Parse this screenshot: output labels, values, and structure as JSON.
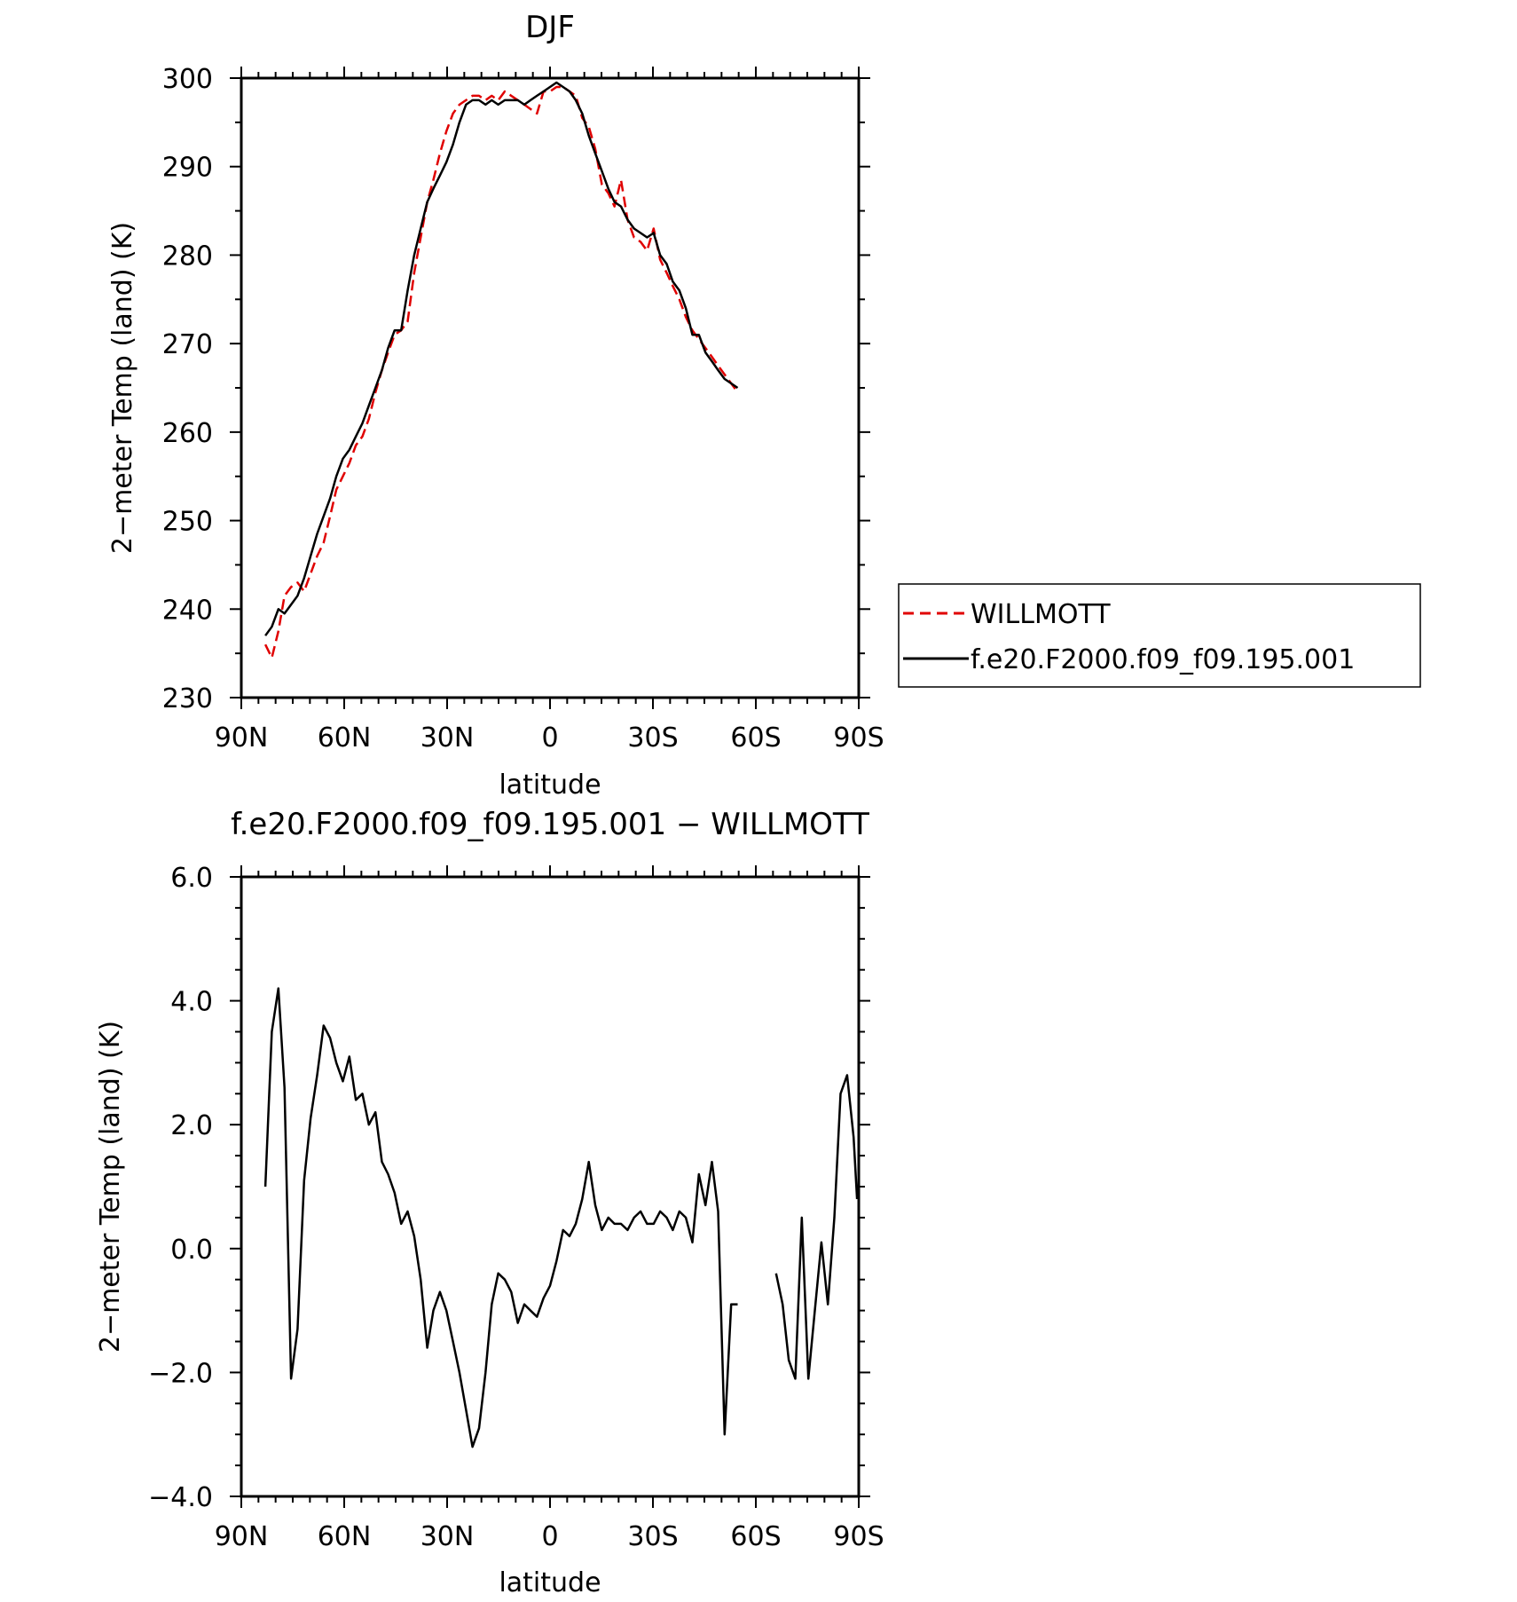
{
  "chart_data": [
    {
      "type": "line",
      "title": "DJF",
      "xlabel": "latitude",
      "ylabel": "2−meter Temp (land) (K)",
      "xlim": [
        90,
        -90
      ],
      "ylim": [
        230,
        300
      ],
      "x_ticks": [
        90,
        60,
        30,
        0,
        -30,
        -60,
        -90
      ],
      "x_tick_labels": [
        "90N",
        "60N",
        "30N",
        "0",
        "30S",
        "60S",
        "90S"
      ],
      "y_ticks": [
        230,
        240,
        250,
        260,
        270,
        280,
        290,
        300
      ],
      "y_tick_labels": [
        "230",
        "240",
        "250",
        "260",
        "270",
        "280",
        "290",
        "300"
      ],
      "legend": {
        "placement": "right",
        "entries": [
          "WILLMOTT",
          "f.e20.F2000.f09_f09.195.001"
        ]
      },
      "series": [
        {
          "name": "WILLMOTT",
          "color": "#e00000",
          "dash": "dashed",
          "segments": [
            {
              "x": [
                83,
                81.1,
                79.2,
                77.4,
                75.5,
                73.6,
                71.7,
                69.8,
                67.9,
                66,
                64.1,
                62.3,
                60.4,
                58.5,
                56.6,
                54.7,
                52.8,
                50.9,
                49,
                47.2,
                45.3,
                43.4,
                41.5,
                39.6,
                37.7,
                35.8,
                34,
                32.1,
                30.2,
                28.3,
                26.4,
                24.5,
                22.6,
                20.7,
                18.8,
                17,
                15.1,
                13.2,
                11.3,
                9.4,
                7.5,
                5.7,
                3.8,
                1.9,
                0,
                -1.9,
                -3.8,
                -5.7,
                -7.5,
                -9.4,
                -11.3,
                -13.2,
                -15.1,
                -17,
                -18.8,
                -20.7,
                -22.6,
                -24.5,
                -26.4,
                -28.3,
                -30.2,
                -32.1,
                -34,
                -35.8,
                -37.7,
                -39.6,
                -41.5,
                -43.4,
                -45.3,
                -47.2,
                -49,
                -50.9,
                -52.8,
                -54.7
              ],
              "y": [
                236,
                234.5,
                237.5,
                241.5,
                242.5,
                243,
                242,
                244,
                246,
                247.5,
                250.5,
                253.5,
                255,
                256.5,
                258.5,
                259.5,
                261.5,
                264.5,
                267,
                269,
                271,
                271.5,
                272.5,
                278,
                282,
                286,
                288.5,
                291.5,
                294,
                296,
                297,
                297.5,
                298,
                298,
                297.5,
                298,
                297.5,
                298.5,
                298,
                297.5,
                297,
                296.5,
                296,
                298.5,
                298.5,
                299,
                299,
                298.5,
                298,
                295.5,
                294.5,
                292,
                288,
                287,
                285.5,
                288.5,
                284,
                282,
                281.5,
                280.5,
                283,
                279.5,
                278,
                276.5,
                275,
                273,
                271.5,
                270.5,
                269.5,
                268.5,
                267.5,
                266.5,
                265.5,
                264.5
              ]
            }
          ]
        },
        {
          "name": "f.e20.F2000.f09_f09.195.001",
          "color": "#000000",
          "dash": "solid",
          "segments": [
            {
              "x": [
                83,
                81.1,
                79.2,
                77.4,
                75.5,
                73.6,
                71.7,
                69.8,
                67.9,
                66,
                64.1,
                62.3,
                60.4,
                58.5,
                56.6,
                54.7,
                52.8,
                50.9,
                49,
                47.2,
                45.3,
                43.4,
                41.5,
                39.6,
                37.7,
                35.8,
                34,
                32.1,
                30.2,
                28.3,
                26.4,
                24.5,
                22.6,
                20.7,
                18.8,
                17,
                15.1,
                13.2,
                11.3,
                9.4,
                7.5,
                5.7,
                3.8,
                1.9,
                0,
                -1.9,
                -3.8,
                -5.7,
                -7.5,
                -9.4,
                -11.3,
                -13.2,
                -15.1,
                -17,
                -18.8,
                -20.7,
                -22.6,
                -24.5,
                -26.4,
                -28.3,
                -30.2,
                -32.1,
                -34,
                -35.8,
                -37.7,
                -39.6,
                -41.5,
                -43.4,
                -45.3,
                -47.2,
                -49,
                -50.9,
                -52.8,
                -54.7
              ],
              "y": [
                237,
                238,
                240,
                239.5,
                240.5,
                241.5,
                243.5,
                246,
                248.5,
                250.5,
                252.5,
                255,
                257,
                258,
                259.5,
                261,
                263,
                265,
                267,
                269.5,
                271.5,
                271.5,
                276,
                280,
                283,
                286,
                287.5,
                289,
                290.5,
                292.5,
                295,
                297,
                297.5,
                297.5,
                297,
                297.5,
                297,
                297.5,
                297.5,
                297.5,
                297,
                297.5,
                298,
                298.5,
                299,
                299.5,
                299,
                298.5,
                297.5,
                296,
                293.5,
                291.5,
                289.5,
                287.5,
                286,
                285.5,
                284,
                283,
                282.5,
                282,
                282.5,
                280,
                279,
                277,
                276,
                274,
                271,
                271,
                269,
                268,
                267,
                266,
                265.5,
                265
              ]
            }
          ]
        }
      ]
    },
    {
      "type": "line",
      "title": "f.e20.F2000.f09_f09.195.001 − WILLMOTT",
      "xlabel": "latitude",
      "ylabel": "2−meter Temp (land) (K)",
      "xlim": [
        90,
        -90
      ],
      "ylim": [
        -4.0,
        6.0
      ],
      "x_ticks": [
        90,
        60,
        30,
        0,
        -30,
        -60,
        -90
      ],
      "x_tick_labels": [
        "90N",
        "60N",
        "30N",
        "0",
        "30S",
        "60S",
        "90S"
      ],
      "y_ticks": [
        -4.0,
        -2.0,
        0.0,
        2.0,
        4.0,
        6.0
      ],
      "y_tick_labels": [
        "−4.0",
        "−2.0",
        "0.0",
        "2.0",
        "4.0",
        "6.0"
      ],
      "series": [
        {
          "name": "f.e20.F2000.f09_f09.195.001 − WILLMOTT",
          "color": "#000000",
          "dash": "solid",
          "segments": [
            {
              "x": [
                83,
                81.1,
                79.2,
                77.4,
                75.5,
                73.6,
                71.7,
                69.8,
                67.9,
                66,
                64.1,
                62.3,
                60.4,
                58.5,
                56.6,
                54.7,
                52.8,
                50.9,
                49,
                47.2,
                45.3,
                43.4,
                41.5,
                39.6,
                37.7,
                35.8,
                34,
                32.1,
                30.2,
                28.3,
                26.4,
                24.5,
                22.6,
                20.7,
                18.8,
                17,
                15.1,
                13.2,
                11.3,
                9.4,
                7.5,
                5.7,
                3.8,
                1.9,
                0,
                -1.9,
                -3.8,
                -5.7,
                -7.5,
                -9.4,
                -11.3,
                -13.2,
                -15.1,
                -17,
                -18.8,
                -20.7,
                -22.6,
                -24.5,
                -26.4,
                -28.3,
                -30.2,
                -32.1,
                -34,
                -35.8,
                -37.7,
                -39.6,
                -41.5,
                -43.4,
                -45.3,
                -47.2,
                -49,
                -50.9,
                -52.8,
                -54.7
              ],
              "y": [
                1.0,
                3.5,
                4.2,
                2.6,
                -2.1,
                -1.3,
                1.1,
                2.1,
                2.8,
                3.6,
                3.4,
                3.0,
                2.7,
                3.1,
                2.4,
                2.5,
                2.0,
                2.2,
                1.4,
                1.2,
                0.9,
                0.4,
                0.6,
                0.2,
                -0.5,
                -1.6,
                -1.0,
                -0.7,
                -1.0,
                -1.5,
                -2.0,
                -2.6,
                -3.2,
                -2.9,
                -2.0,
                -0.9,
                -0.4,
                -0.5,
                -0.7,
                -1.2,
                -0.9,
                -1.0,
                -1.1,
                -0.8,
                -0.6,
                -0.2,
                0.3,
                0.2,
                0.4,
                0.8,
                1.4,
                0.7,
                0.3,
                0.5,
                0.4,
                0.4,
                0.3,
                0.5,
                0.6,
                0.4,
                0.4,
                0.6,
                0.5,
                0.3,
                0.6,
                0.5,
                0.1,
                1.2,
                0.7,
                1.4,
                0.6,
                -3.0,
                -0.9,
                -0.9
              ]
            },
            {
              "x": [
                -65.9,
                -67.8,
                -69.6,
                -71.5,
                -73.4,
                -75.3,
                -77.2,
                -79.1,
                -81,
                -82.9,
                -84.7,
                -86.6,
                -88.5,
                -89.5
              ],
              "y": [
                -0.4,
                -0.9,
                -1.8,
                -2.1,
                0.5,
                -2.1,
                -1.0,
                0.1,
                -0.9,
                0.5,
                2.5,
                2.8,
                1.8,
                0.8
              ]
            }
          ]
        }
      ]
    }
  ]
}
